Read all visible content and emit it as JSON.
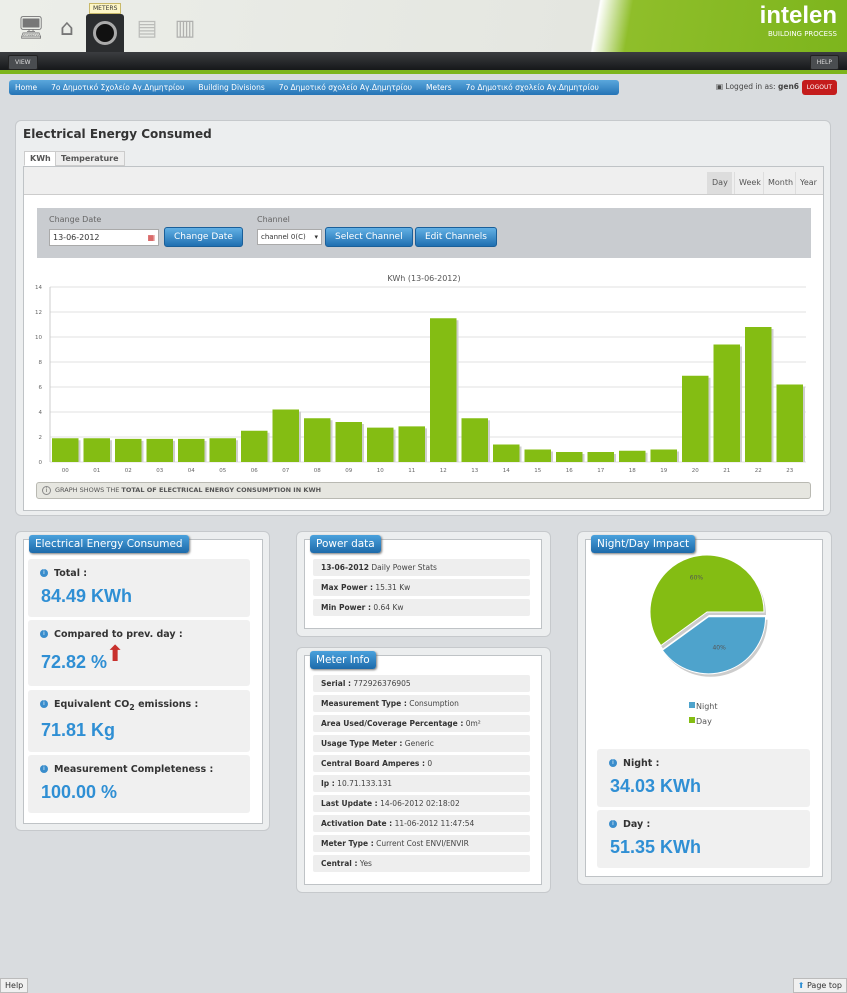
{
  "header": {
    "nav_tooltip": "METERS",
    "logo_name": "intelen",
    "logo_tagline": "BUILDING PROCESS",
    "view_label": "VIEW",
    "help_label": "HELP"
  },
  "breadcrumb": [
    "Home",
    "7ο Δημοτικό Σχολείο Αγ.Δημητρίου",
    "Building Divisions",
    "7ο Δημοτικό σχολείο Αγ.Δημητρίου",
    "Meters",
    "7ο Δημοτικό σχολείο Αγ.Δημητρίου"
  ],
  "user": {
    "logged_in_label": "Logged in as:",
    "username": "gen6",
    "logout_label": "LOGOUT"
  },
  "main": {
    "title": "Electrical Energy Consumed",
    "tabs": [
      "KWh",
      "Temperature"
    ],
    "periods": [
      "Day",
      "Week",
      "Month",
      "Year"
    ],
    "active_period": "Day",
    "change_date_label": "Change Date",
    "date_value": "13-06-2012",
    "change_date_button": "Change Date",
    "channel_label": "Channel",
    "channel_value": "channel 0(C)",
    "select_channel_button": "Select Channel",
    "edit_channels_button": "Edit Channels",
    "note_prefix": "GRAPH SHOWS THE",
    "note_bold": "TOTAL OF ELECTRICAL ENERGY CONSUMPTION IN KWH"
  },
  "chart_data": {
    "type": "bar",
    "title": "KWh (13-06-2012)",
    "xlabel": "",
    "ylabel": "",
    "ylim": [
      0,
      14
    ],
    "yticks": [
      0,
      2,
      4,
      6,
      8,
      10,
      12,
      14
    ],
    "grid": true,
    "color": "#84bd13",
    "categories": [
      "00",
      "01",
      "02",
      "03",
      "04",
      "05",
      "06",
      "07",
      "08",
      "09",
      "10",
      "11",
      "12",
      "13",
      "14",
      "15",
      "16",
      "17",
      "18",
      "19",
      "20",
      "21",
      "22",
      "23"
    ],
    "values": [
      1.9,
      1.9,
      1.85,
      1.85,
      1.85,
      1.9,
      2.5,
      4.2,
      3.5,
      3.2,
      2.75,
      2.85,
      11.5,
      3.5,
      1.4,
      1.0,
      0.8,
      0.8,
      0.9,
      1.0,
      6.9,
      9.4,
      10.8,
      6.2
    ]
  },
  "energy": {
    "title": "Electrical Energy Consumed",
    "total_label": "Total :",
    "total_value": "84.49 KWh",
    "compared_label": "Compared to prev. day :",
    "compared_value": "72.82 %",
    "co2_label_a": "Equivalent CO",
    "co2_sub": "2",
    "co2_label_b": " emissions :",
    "co2_value": "71.81 Kg",
    "completeness_label": "Measurement Completeness :",
    "completeness_value": "100.00 %"
  },
  "power": {
    "title": "Power data",
    "date": "13-06-2012",
    "date_suffix": "Daily Power Stats",
    "max_label": "Max Power :",
    "max_value": "15.31 Kw",
    "min_label": "Min Power :",
    "min_value": "0.64 Kw"
  },
  "meter": {
    "title": "Meter Info",
    "rows": [
      {
        "label": "Serial :",
        "value": "772926376905"
      },
      {
        "label": "Measurement Type :",
        "value": "Consumption"
      },
      {
        "label": "Area Used/Coverage Percentage :",
        "value": "0m²"
      },
      {
        "label": "Usage Type Meter :",
        "value": "Generic"
      },
      {
        "label": "Central Board Amperes :",
        "value": "0"
      },
      {
        "label": "Ip :",
        "value": "10.71.133.131"
      },
      {
        "label": "Last Update :",
        "value": "14-06-2012 02:18:02"
      },
      {
        "label": "Activation Date :",
        "value": "11-06-2012 11:47:54"
      },
      {
        "label": "Meter Type :",
        "value": "Current Cost ENVI/ENVIR"
      },
      {
        "label": "Central :",
        "value": "Yes"
      }
    ]
  },
  "impact": {
    "title": "Night/Day Impact",
    "pie": {
      "type": "pie",
      "slices": [
        {
          "name": "Night",
          "value": 40,
          "label": "40%",
          "color": "#4ea3cc"
        },
        {
          "name": "Day",
          "value": 60,
          "label": "60%",
          "color": "#84bd13"
        }
      ],
      "legend": "bottom"
    },
    "night_label": "Night :",
    "night_value": "34.03 KWh",
    "day_label": "Day :",
    "day_value": "51.35 KWh"
  },
  "footer": {
    "help": "Help",
    "page_top": "Page top"
  }
}
